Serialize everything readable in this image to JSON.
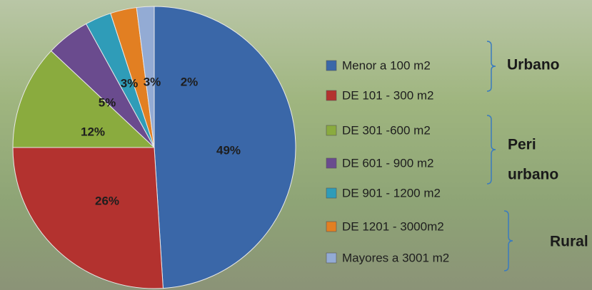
{
  "chart_data": {
    "type": "pie",
    "categories": [
      "Menor a 100 m2",
      "DE 101 - 300 m2",
      "DE 301 -600 m2",
      "DE 601 - 900 m2",
      "DE 901 - 1200 m2",
      "DE 1201 - 3000m2",
      "Mayores a 3001 m2"
    ],
    "values": [
      49,
      26,
      12,
      5,
      3,
      3,
      2
    ],
    "value_labels": [
      "49%",
      "26%",
      "12%",
      "5%",
      "3%",
      "3%",
      "2%"
    ],
    "colors": [
      "#3a67a8",
      "#b3322f",
      "#8aab3e",
      "#6a4b8e",
      "#2f9cb8",
      "#e27f22",
      "#93abd4"
    ],
    "annotations": [
      "Urbano",
      "Peri",
      "urbano",
      "Rural"
    ]
  }
}
